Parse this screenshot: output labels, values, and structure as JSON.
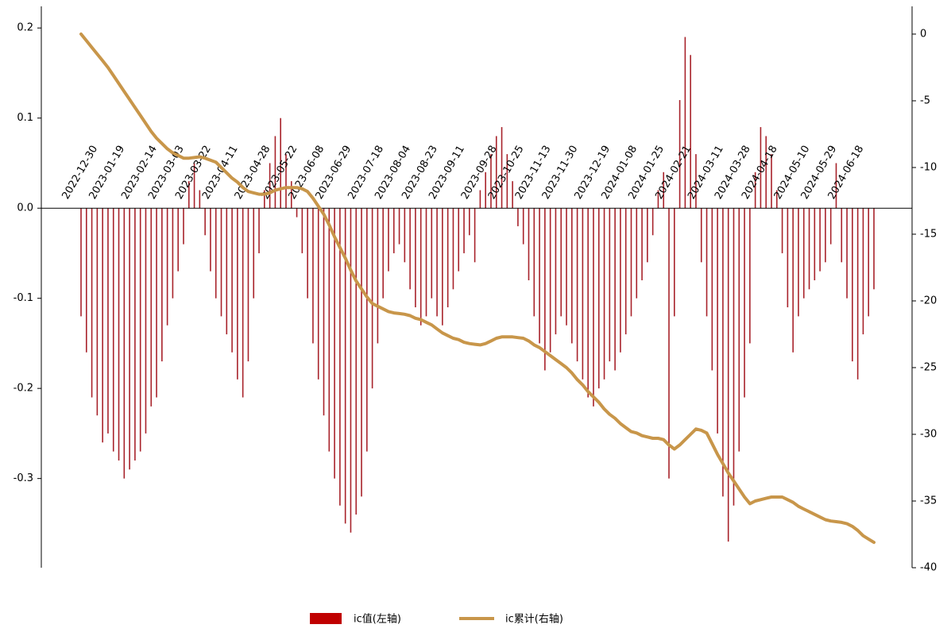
{
  "chart_data": {
    "type": "bar_line",
    "categories": [
      "2022-12-30",
      null,
      null,
      null,
      null,
      "2023-01-19",
      null,
      null,
      null,
      null,
      null,
      "2023-02-14",
      null,
      null,
      null,
      null,
      "2023-03-03",
      null,
      null,
      null,
      null,
      "2023-03-22",
      null,
      null,
      null,
      null,
      "2023-04-11",
      null,
      null,
      null,
      null,
      null,
      "2023-04-28",
      null,
      null,
      null,
      null,
      "2023-05-22",
      null,
      null,
      null,
      null,
      "2023-06-08",
      null,
      null,
      null,
      null,
      "2023-06-29",
      null,
      null,
      null,
      null,
      null,
      "2023-07-18",
      null,
      null,
      null,
      null,
      "2023-08-04",
      null,
      null,
      null,
      null,
      "2023-08-23",
      null,
      null,
      null,
      null,
      "2023-09-11",
      null,
      null,
      null,
      null,
      null,
      "2023-09-28",
      null,
      null,
      null,
      null,
      "2023-10-25",
      null,
      null,
      null,
      null,
      "2023-11-13",
      null,
      null,
      null,
      null,
      "2023-11-30",
      null,
      null,
      null,
      null,
      null,
      "2023-12-19",
      null,
      null,
      null,
      null,
      "2024-01-08",
      null,
      null,
      null,
      null,
      "2024-01-25",
      null,
      null,
      null,
      null,
      "2024-02-21",
      null,
      null,
      null,
      null,
      null,
      "2024-03-11",
      null,
      null,
      null,
      null,
      "2024-03-28",
      null,
      null,
      null,
      null,
      "2024-04-18",
      null,
      null,
      null,
      null,
      null,
      "2024-05-10",
      null,
      null,
      null,
      null,
      "2024-05-29",
      null,
      null,
      null,
      null,
      "2024-06-18",
      null,
      null,
      null,
      null,
      null
    ],
    "series": [
      {
        "name": "ic值(左轴)",
        "color": "#c00000",
        "bar_color": "#a8232b",
        "axis": "y",
        "values": [
          -0.12,
          -0.16,
          -0.21,
          -0.23,
          -0.26,
          -0.25,
          -0.27,
          -0.28,
          -0.3,
          -0.29,
          -0.28,
          -0.27,
          -0.25,
          -0.22,
          -0.21,
          -0.17,
          -0.13,
          -0.1,
          -0.07,
          -0.04,
          0.03,
          0.05,
          0.02,
          -0.03,
          -0.07,
          -0.1,
          -0.12,
          -0.14,
          -0.16,
          -0.19,
          -0.21,
          -0.17,
          -0.1,
          -0.05,
          0.02,
          0.05,
          0.08,
          0.1,
          0.06,
          0.03,
          -0.01,
          -0.05,
          -0.1,
          -0.15,
          -0.19,
          -0.23,
          -0.27,
          -0.3,
          -0.33,
          -0.35,
          -0.36,
          -0.34,
          -0.32,
          -0.27,
          -0.2,
          -0.15,
          -0.1,
          -0.07,
          -0.05,
          -0.04,
          -0.06,
          -0.09,
          -0.11,
          -0.13,
          -0.12,
          -0.1,
          -0.12,
          -0.13,
          -0.11,
          -0.09,
          -0.07,
          -0.05,
          -0.03,
          -0.06,
          0.02,
          0.04,
          0.06,
          0.08,
          0.09,
          0.06,
          0.03,
          -0.02,
          -0.04,
          -0.08,
          -0.12,
          -0.15,
          -0.18,
          -0.16,
          -0.14,
          -0.12,
          -0.13,
          -0.15,
          -0.17,
          -0.19,
          -0.21,
          -0.22,
          -0.2,
          -0.19,
          -0.17,
          -0.18,
          -0.16,
          -0.14,
          -0.12,
          -0.1,
          -0.08,
          -0.06,
          -0.03,
          0.02,
          0.04,
          -0.3,
          -0.12,
          0.12,
          0.19,
          0.17,
          0.06,
          -0.06,
          -0.12,
          -0.18,
          -0.25,
          -0.32,
          -0.37,
          -0.33,
          -0.27,
          -0.21,
          -0.15,
          0.04,
          0.09,
          0.08,
          0.06,
          0.02,
          -0.05,
          -0.11,
          -0.16,
          -0.12,
          -0.1,
          -0.09,
          -0.08,
          -0.07,
          -0.06,
          -0.04,
          0.05,
          -0.06,
          -0.1,
          -0.17,
          -0.19,
          -0.14,
          -0.12,
          -0.09
        ]
      },
      {
        "name": "ic累计(右轴)",
        "color": "#c8964a",
        "axis": "y2",
        "values": [
          0,
          -0.5,
          -1.0,
          -1.5,
          -2.0,
          -2.5,
          -3.1,
          -3.7,
          -4.3,
          -4.9,
          -5.5,
          -6.1,
          -6.7,
          -7.3,
          -7.8,
          -8.2,
          -8.6,
          -8.9,
          -9.1,
          -9.3,
          -9.3,
          -9.25,
          -9.2,
          -9.3,
          -9.45,
          -9.6,
          -10.0,
          -10.4,
          -10.8,
          -11.1,
          -11.5,
          -11.8,
          -11.9,
          -12.0,
          -12.0,
          -11.9,
          -11.7,
          -11.6,
          -11.5,
          -11.5,
          -11.5,
          -11.6,
          -11.8,
          -12.3,
          -12.9,
          -13.5,
          -14.3,
          -15.2,
          -16.0,
          -16.8,
          -17.7,
          -18.5,
          -19.1,
          -19.7,
          -20.2,
          -20.4,
          -20.6,
          -20.8,
          -20.9,
          -20.95,
          -21.0,
          -21.1,
          -21.3,
          -21.4,
          -21.6,
          -21.8,
          -22.1,
          -22.4,
          -22.6,
          -22.8,
          -22.9,
          -23.1,
          -23.2,
          -23.25,
          -23.3,
          -23.2,
          -23.0,
          -22.8,
          -22.7,
          -22.7,
          -22.7,
          -22.75,
          -22.8,
          -23.0,
          -23.3,
          -23.5,
          -23.8,
          -24.1,
          -24.4,
          -24.7,
          -25.0,
          -25.4,
          -25.9,
          -26.3,
          -26.8,
          -27.2,
          -27.6,
          -28.1,
          -28.5,
          -28.8,
          -29.2,
          -29.5,
          -29.8,
          -29.9,
          -30.1,
          -30.2,
          -30.3,
          -30.3,
          -30.4,
          -30.8,
          -31.1,
          -30.8,
          -30.4,
          -30.0,
          -29.6,
          -29.7,
          -29.9,
          -30.7,
          -31.5,
          -32.2,
          -32.9,
          -33.5,
          -34.1,
          -34.7,
          -35.2,
          -35.0,
          -34.9,
          -34.8,
          -34.7,
          -34.7,
          -34.7,
          -34.9,
          -35.1,
          -35.4,
          -35.6,
          -35.8,
          -36.0,
          -36.2,
          -36.4,
          -36.5,
          -36.55,
          -36.6,
          -36.7,
          -36.9,
          -37.2,
          -37.6,
          -37.85,
          -38.1
        ]
      }
    ],
    "ylim": [
      -0.399,
      0.224
    ],
    "yticks": [
      0.2,
      0.1,
      {
        "value": 0,
        "label": "0.0"
      },
      -0.1,
      -0.2,
      -0.3
    ],
    "y2lim": [
      -40,
      2.08
    ],
    "y2ticks": [
      0,
      -5,
      -10,
      -15,
      -20,
      -25,
      -30,
      -35,
      -40
    ],
    "legend": "bottom"
  }
}
